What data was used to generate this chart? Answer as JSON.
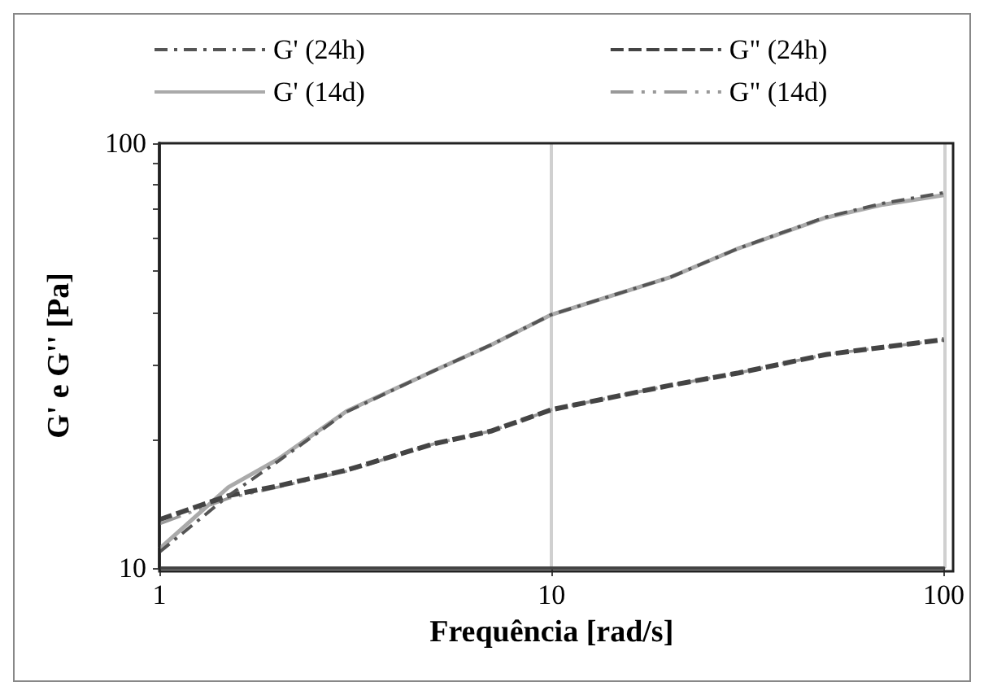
{
  "chart_data": {
    "type": "line",
    "xlabel": "Frequência [rad/s]",
    "ylabel": "G' e G'' [Pa]",
    "log": "xy",
    "xlim": [
      1,
      100
    ],
    "ylim": [
      10,
      100
    ],
    "xticks": [
      1,
      10,
      100
    ],
    "yticks": [
      10,
      {
        "value": 20,
        "label": null
      },
      {
        "value": 30,
        "label": null
      },
      {
        "value": 40,
        "label": null
      },
      {
        "value": 50,
        "label": null
      },
      {
        "value": 60,
        "label": null
      },
      {
        "value": 70,
        "label": null
      },
      {
        "value": 80,
        "label": null
      },
      {
        "value": 90,
        "label": null
      },
      100
    ],
    "grid": "x",
    "legend": "top",
    "marker": "none",
    "x": [
      1,
      1.5,
      2,
      3,
      5,
      7,
      10,
      20,
      30,
      50,
      70,
      100
    ],
    "series": [
      {
        "name": "G' (24h)",
        "color": "#555555",
        "line_style": "dashdot",
        "values": [
          10.9,
          14.8,
          17.8,
          23.3,
          29.1,
          33.5,
          39.5,
          48.3,
          56.6,
          67.0,
          72.2,
          76.5
        ]
      },
      {
        "name": "G\" (24h)",
        "color": "#444444",
        "line_style": "dashed",
        "values": [
          13.0,
          14.8,
          15.6,
          17.0,
          19.6,
          21.0,
          23.6,
          26.9,
          28.8,
          31.8,
          33.1,
          34.5
        ]
      },
      {
        "name": "G' (14d)",
        "color": "#aaaaaa",
        "line_style": "solid",
        "values": [
          11.1,
          15.5,
          18.0,
          23.4,
          29.1,
          33.5,
          39.5,
          48.3,
          56.6,
          66.8,
          71.7,
          75.5
        ]
      },
      {
        "name": "G\" (14d)",
        "color": "#999999",
        "line_style": "dashdotdot",
        "values": [
          12.7,
          14.6,
          15.5,
          16.9,
          19.6,
          21.0,
          23.6,
          26.9,
          28.8,
          31.8,
          33.1,
          34.4
        ]
      }
    ]
  }
}
